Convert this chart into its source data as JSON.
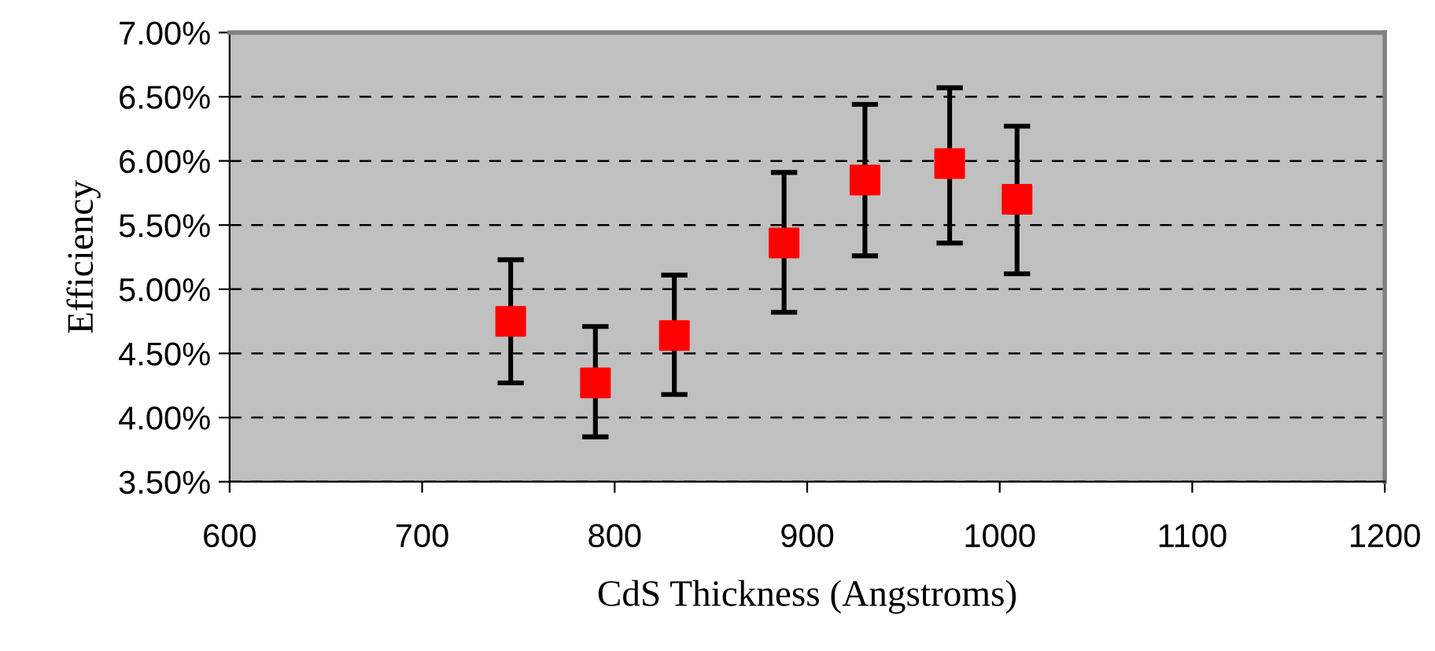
{
  "chart_data": {
    "type": "scatter",
    "xlabel": "CdS Thickness (Angstroms)",
    "ylabel": "Efficiency",
    "x": [
      746,
      790,
      831,
      888,
      930,
      974,
      1009
    ],
    "series": [
      {
        "color": "#ff0000",
        "values": [
          4.75,
          4.27,
          4.64,
          5.36,
          5.85,
          5.98,
          5.7
        ],
        "errors": [
          [
            4.27,
            5.23
          ],
          [
            3.85,
            4.71
          ],
          [
            4.18,
            5.11
          ],
          [
            4.82,
            5.91
          ],
          [
            5.26,
            6.44
          ],
          [
            5.36,
            6.57
          ],
          [
            5.12,
            6.27
          ]
        ]
      }
    ],
    "marker": "square",
    "grid": "y",
    "xlim": [
      600,
      1200
    ],
    "xticks": [
      600,
      700,
      800,
      900,
      1000,
      1100,
      1200
    ],
    "ylim": [
      3.5,
      7.0
    ],
    "yticks": [
      {
        "value": 3.5,
        "label": "3.50%"
      },
      {
        "value": 4.0,
        "label": "4.00%"
      },
      {
        "value": 4.5,
        "label": "4.50%"
      },
      {
        "value": 5.0,
        "label": "5.00%"
      },
      {
        "value": 5.5,
        "label": "5.50%"
      },
      {
        "value": 6.0,
        "label": "6.00%"
      },
      {
        "value": 6.5,
        "label": "6.50%"
      },
      {
        "value": 7.0,
        "label": "7.00%"
      }
    ]
  }
}
